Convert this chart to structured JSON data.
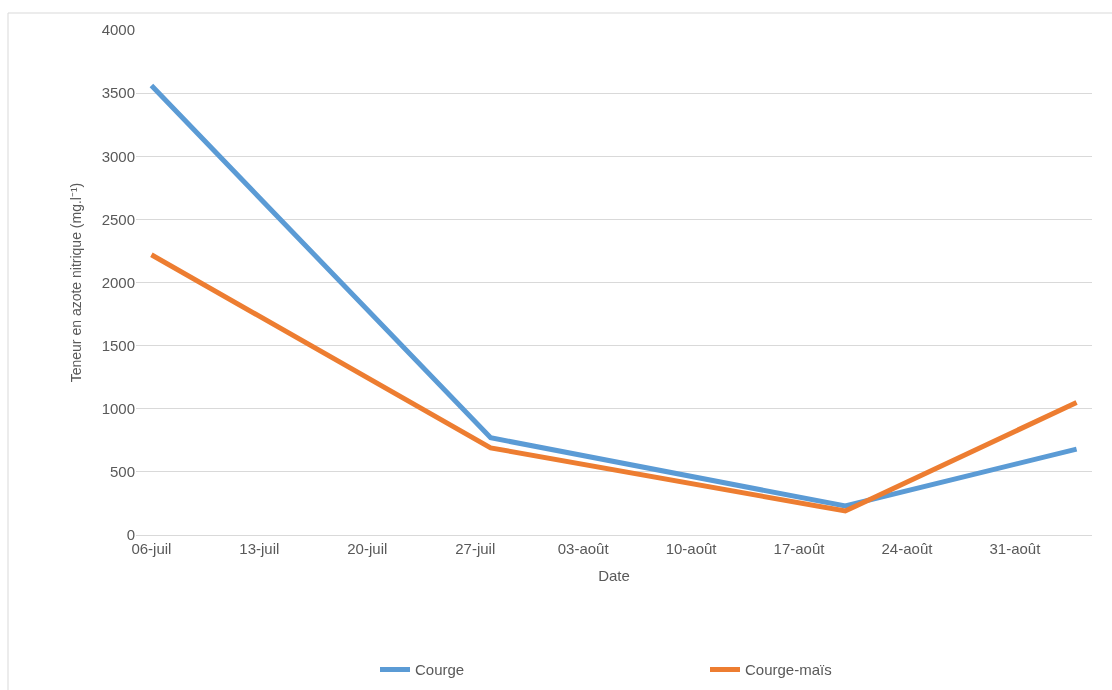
{
  "chart_data": {
    "type": "line",
    "xlabel": "Date",
    "ylabel": "Teneur en azote nitrique (mg.l⁻¹)",
    "x": [
      "--07-06",
      "--07-28",
      "--08-20",
      "--09-04"
    ],
    "series": [
      {
        "name": "Courge",
        "color": "#5b9bd5",
        "values": [
          3560,
          770,
          230,
          680
        ]
      },
      {
        "name": "Courge-maïs",
        "color": "#ed7d31",
        "values": [
          2220,
          690,
          190,
          1050
        ]
      }
    ],
    "xlim": [
      "--07-05",
      "--09-05"
    ],
    "xticks": [
      {
        "value": "--07-06",
        "label": "06-juil"
      },
      {
        "value": "--07-13",
        "label": "13-juil"
      },
      {
        "value": "--07-20",
        "label": "20-juil"
      },
      {
        "value": "--07-27",
        "label": "27-juil"
      },
      {
        "value": "--08-03",
        "label": "03-août"
      },
      {
        "value": "--08-10",
        "label": "10-août"
      },
      {
        "value": "--08-17",
        "label": "17-août"
      },
      {
        "value": "--08-24",
        "label": "24-août"
      },
      {
        "value": "--08-31",
        "label": "31-août"
      }
    ],
    "ylim": [
      0,
      4000
    ],
    "yticks": [
      0,
      500,
      1000,
      1500,
      2000,
      2500,
      3000,
      3500,
      4000
    ],
    "grid": "y",
    "legend": "bottom",
    "marker": "none",
    "line_style": "solid"
  }
}
